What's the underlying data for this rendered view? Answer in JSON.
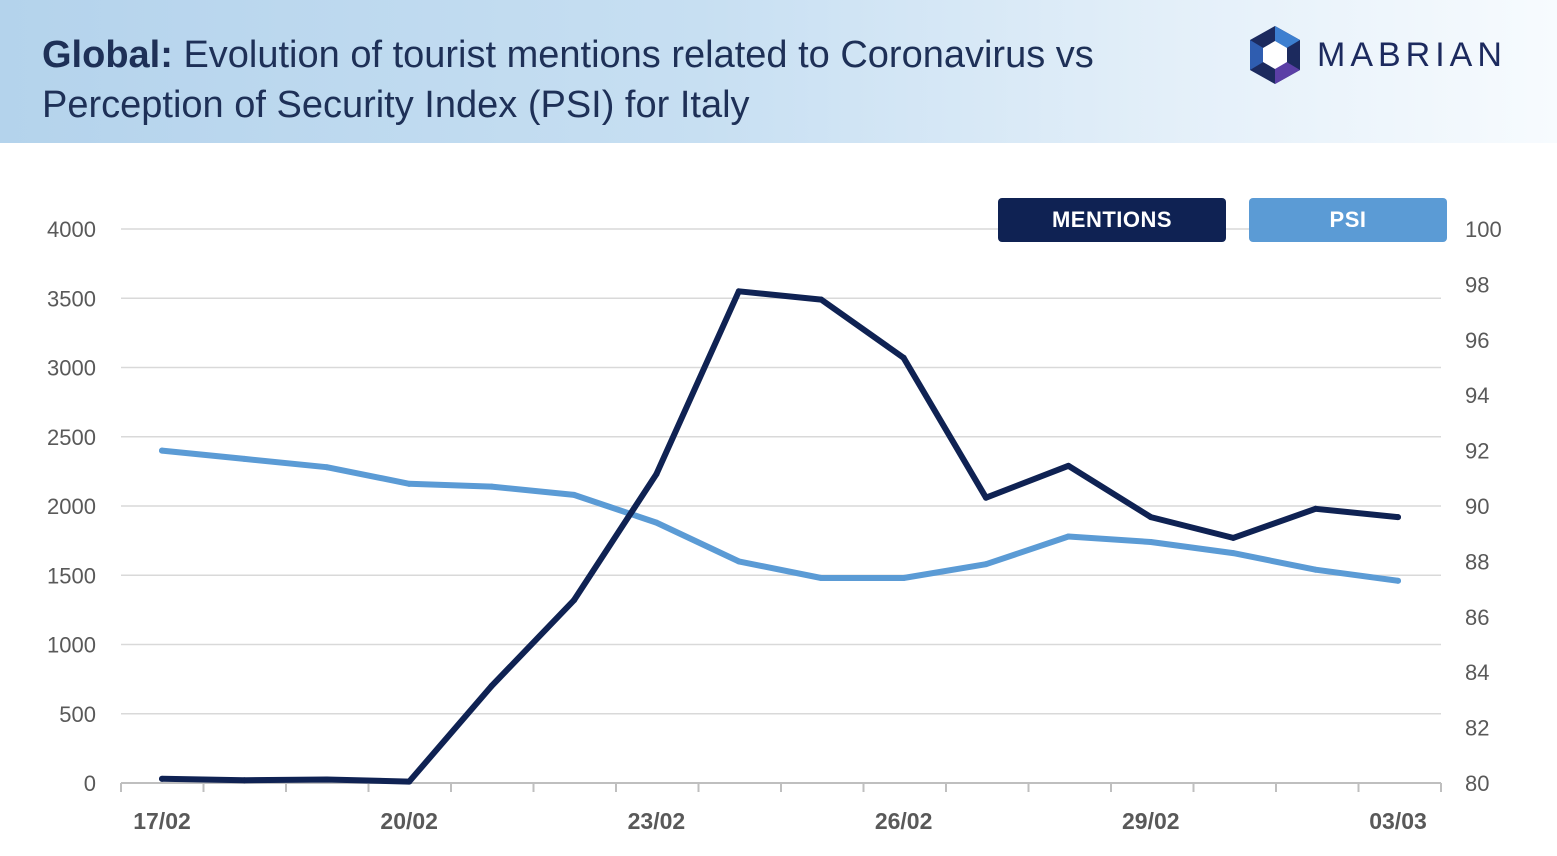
{
  "title": {
    "bold": "Global:",
    "text": " Evolution of tourist mentions related to Coronavirus vs Perception of Security Index (PSI) for Italy"
  },
  "logo": {
    "text": "MABRIAN",
    "icon": "mabrian-hexagon-logo",
    "colors": [
      "#1c2a5e",
      "#3d7fd0",
      "#5b3fa6"
    ]
  },
  "legend": [
    {
      "label": "MENTIONS",
      "color": "#0f2253"
    },
    {
      "label": "PSI",
      "color": "#5b9bd5"
    }
  ],
  "chart_data": {
    "type": "line",
    "x": [
      "17/02",
      "18/02",
      "19/02",
      "20/02",
      "21/02",
      "22/02",
      "23/02",
      "24/02",
      "25/02",
      "26/02",
      "27/02",
      "28/02",
      "29/02",
      "01/03",
      "02/03",
      "03/03"
    ],
    "x_tick_labels": [
      "17/02",
      "20/02",
      "23/02",
      "26/02",
      "29/02",
      "03/03"
    ],
    "series": [
      {
        "name": "MENTIONS",
        "axis": "left",
        "color": "#0f2253",
        "values": [
          30,
          20,
          25,
          10,
          700,
          1320,
          2230,
          3550,
          3490,
          3070,
          2060,
          2290,
          1920,
          1770,
          1980,
          1920
        ]
      },
      {
        "name": "PSI",
        "axis": "right",
        "color": "#5b9bd5",
        "values": [
          92.0,
          91.7,
          91.4,
          90.8,
          90.7,
          90.4,
          89.4,
          88.0,
          87.4,
          87.4,
          87.9,
          88.9,
          88.7,
          88.3,
          87.7,
          87.3
        ]
      }
    ],
    "y_left": {
      "ylim": [
        0,
        4000
      ],
      "ticks": [
        0,
        500,
        1000,
        1500,
        2000,
        2500,
        3000,
        3500,
        4000
      ]
    },
    "y_right": {
      "ylim": [
        80,
        100
      ],
      "ticks": [
        80,
        82,
        84,
        86,
        88,
        90,
        92,
        94,
        96,
        98,
        100
      ]
    },
    "grid": true,
    "legend_position": "top-right"
  }
}
